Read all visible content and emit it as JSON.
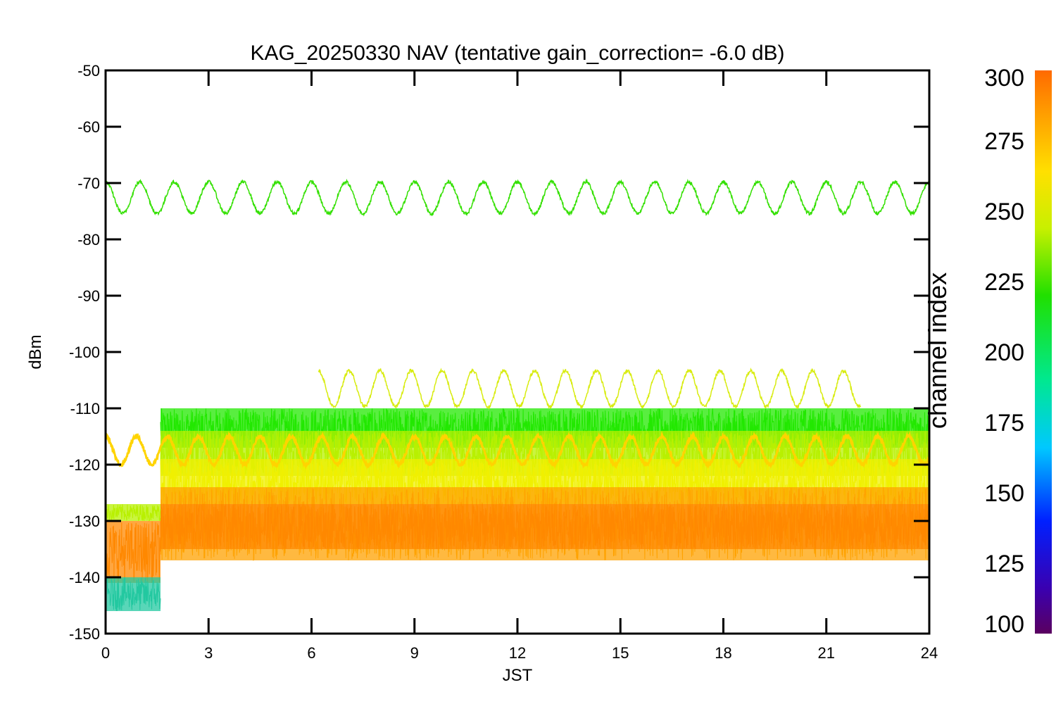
{
  "chart_data": {
    "type": "line",
    "title": "KAG_20250330 NAV (tentative gain_correction= -6.0 dB)",
    "xlabel": "JST",
    "ylabel": "dBm",
    "xlim": [
      0,
      24
    ],
    "ylim": [
      -150,
      -50
    ],
    "xticks": [
      0,
      3,
      6,
      9,
      12,
      15,
      18,
      21,
      24
    ],
    "yticks": [
      -50,
      -60,
      -70,
      -80,
      -90,
      -100,
      -110,
      -120,
      -130,
      -140,
      -150
    ],
    "colorbar": {
      "label": "channel index",
      "range": [
        100,
        300
      ],
      "ticks": [
        300,
        275,
        250,
        225,
        200,
        175,
        150,
        125,
        100
      ]
    },
    "series": [
      {
        "color": "#33e000",
        "channel_index": 238,
        "time_range": [
          0,
          24
        ],
        "mean": -72.6,
        "amplitude": 2.8,
        "period_hours": 1.0,
        "min": -75.5,
        "max": -69.5
      },
      {
        "color": "#d8ec10",
        "channel_index": 262,
        "time_range": [
          6.2,
          22
        ],
        "mean": -106.5,
        "amplitude": 3.2,
        "period_hours": 0.9,
        "min": -110,
        "max": -99
      },
      {
        "color": "#ffd400",
        "channel_index": 272,
        "time_range": [
          0,
          24
        ],
        "mean": -117.5,
        "amplitude": 2.5,
        "period_hours": 0.9,
        "min": -120,
        "max": -115
      }
    ],
    "noise_bands": [
      {
        "color": "#22e800",
        "channel_index": 235,
        "time_range": [
          1.6,
          24
        ],
        "low": -117,
        "high": -110
      },
      {
        "color": "#b8f000",
        "channel_index": 255,
        "time_range": [
          1.6,
          24
        ],
        "low": -122,
        "high": -114
      },
      {
        "color": "#f0f000",
        "channel_index": 265,
        "time_range": [
          1.6,
          24
        ],
        "low": -127,
        "high": -119
      },
      {
        "color": "#ffa200",
        "channel_index": 285,
        "time_range": [
          1.6,
          24
        ],
        "low": -137,
        "high": -124
      },
      {
        "color": "#ff8800",
        "channel_index": 292,
        "time_range": [
          1.6,
          24
        ],
        "low": -135,
        "high": -127
      },
      {
        "color": "#b8f000",
        "channel_index": 255,
        "time_range": [
          0,
          1.6
        ],
        "low": -130,
        "high": -127
      },
      {
        "color": "#ff8800",
        "channel_index": 292,
        "time_range": [
          0,
          1.6
        ],
        "low": -141,
        "high": -130
      },
      {
        "color": "#22c8a0",
        "channel_index": 200,
        "time_range": [
          0,
          1.6
        ],
        "low": -146,
        "high": -140
      }
    ]
  }
}
